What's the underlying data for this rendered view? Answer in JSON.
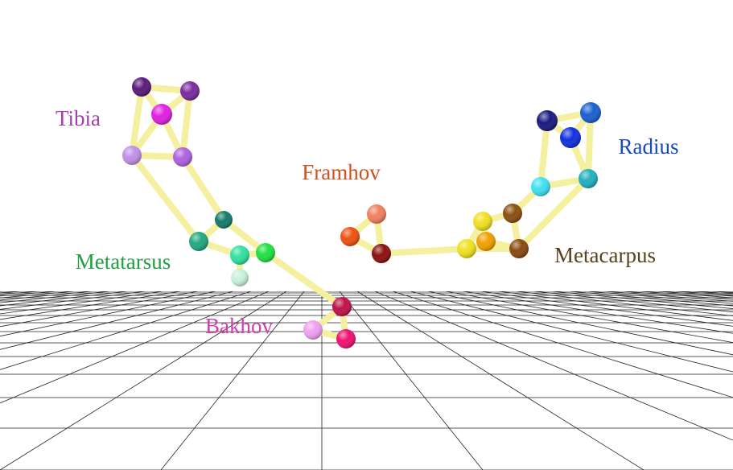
{
  "labels": [
    "Tibia",
    "Framhov",
    "Radius",
    "Metatarsus",
    "Metacarpus",
    "Bakhov"
  ]
}
